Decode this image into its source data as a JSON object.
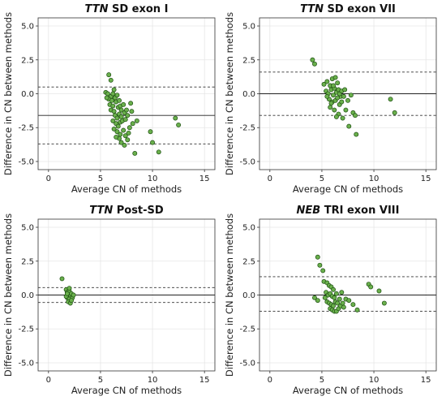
{
  "chart_data": [
    {
      "type": "scatter",
      "title": {
        "gene": "TTN",
        "rest": "SD exon I"
      },
      "xlabel": "Average CN of methods",
      "ylabel": "Difference in CN between methods",
      "xlim": [
        -1,
        16
      ],
      "ylim": [
        -5.6,
        5.6
      ],
      "xticks": [
        0,
        5,
        10,
        15
      ],
      "yticks": [
        5.0,
        2.5,
        0.0,
        -2.5,
        -5.0
      ],
      "ytick_labels": [
        "5.0",
        "2.5",
        "0.0",
        "-2.5",
        "-5.0"
      ],
      "grid": true,
      "mean": -1.6,
      "loa": [
        0.5,
        -3.7
      ],
      "points": [
        [
          5.8,
          1.4
        ],
        [
          6.0,
          1.0
        ],
        [
          5.5,
          0.1
        ],
        [
          5.7,
          0.0
        ],
        [
          6.0,
          -0.2
        ],
        [
          6.2,
          0.0
        ],
        [
          6.3,
          0.3
        ],
        [
          5.8,
          -0.4
        ],
        [
          6.1,
          -0.5
        ],
        [
          6.4,
          -0.3
        ],
        [
          5.9,
          -0.8
        ],
        [
          6.2,
          -0.9
        ],
        [
          6.5,
          -0.6
        ],
        [
          6.6,
          -0.1
        ],
        [
          6.8,
          -0.5
        ],
        [
          6.0,
          -1.2
        ],
        [
          6.3,
          -1.3
        ],
        [
          6.7,
          -1.0
        ],
        [
          6.9,
          -0.9
        ],
        [
          7.0,
          -1.2
        ],
        [
          7.2,
          -0.8
        ],
        [
          6.4,
          -1.6
        ],
        [
          6.6,
          -1.8
        ],
        [
          6.8,
          -1.5
        ],
        [
          7.0,
          -1.7
        ],
        [
          7.3,
          -1.4
        ],
        [
          7.5,
          -1.2
        ],
        [
          6.2,
          -2.0
        ],
        [
          6.5,
          -2.2
        ],
        [
          6.7,
          -2.4
        ],
        [
          6.9,
          -2.1
        ],
        [
          7.1,
          -2.0
        ],
        [
          7.4,
          -1.9
        ],
        [
          7.6,
          -1.6
        ],
        [
          6.3,
          -2.6
        ],
        [
          6.6,
          -2.8
        ],
        [
          6.9,
          -3.0
        ],
        [
          7.2,
          -2.7
        ],
        [
          7.4,
          -3.1
        ],
        [
          7.6,
          -3.4
        ],
        [
          6.8,
          -3.3
        ],
        [
          7.0,
          -3.6
        ],
        [
          7.3,
          -3.8
        ],
        [
          6.5,
          -3.2
        ],
        [
          7.8,
          -2.5
        ],
        [
          8.0,
          -1.3
        ],
        [
          8.5,
          -2.0
        ],
        [
          8.3,
          -4.4
        ],
        [
          9.8,
          -2.8
        ],
        [
          10.0,
          -3.6
        ],
        [
          10.6,
          -4.3
        ],
        [
          12.2,
          -1.8
        ],
        [
          12.5,
          -2.3
        ],
        [
          7.9,
          -0.7
        ],
        [
          5.6,
          -0.3
        ],
        [
          7.7,
          -2.9
        ],
        [
          8.1,
          -2.2
        ]
      ]
    },
    {
      "type": "scatter",
      "title": {
        "gene": "TTN",
        "rest": "SD exon VII"
      },
      "xlabel": "Average CN of methods",
      "ylabel": "Difference in CN between methods",
      "xlim": [
        -1,
        16
      ],
      "ylim": [
        -5.6,
        5.6
      ],
      "xticks": [
        0,
        5,
        10,
        15
      ],
      "yticks": [
        5.0,
        2.5,
        0.0,
        -2.5,
        -5.0
      ],
      "ytick_labels": [
        "5.0",
        "2.5",
        "0.0",
        "-2.5",
        "-5.0"
      ],
      "grid": true,
      "mean": 0.0,
      "loa": [
        1.6,
        -1.6
      ],
      "points": [
        [
          4.1,
          2.5
        ],
        [
          4.3,
          2.2
        ],
        [
          5.2,
          0.7
        ],
        [
          5.5,
          0.9
        ],
        [
          5.8,
          0.6
        ],
        [
          6.0,
          1.1
        ],
        [
          6.3,
          1.2
        ],
        [
          6.5,
          0.8
        ],
        [
          5.4,
          0.2
        ],
        [
          5.6,
          0.0
        ],
        [
          5.9,
          0.3
        ],
        [
          6.1,
          -0.1
        ],
        [
          6.2,
          0.4
        ],
        [
          6.4,
          0.1
        ],
        [
          6.6,
          0.3
        ],
        [
          6.8,
          -0.2
        ],
        [
          5.7,
          -0.4
        ],
        [
          6.0,
          -0.6
        ],
        [
          6.3,
          -0.5
        ],
        [
          6.5,
          -0.3
        ],
        [
          6.7,
          -0.8
        ],
        [
          6.9,
          -0.6
        ],
        [
          7.1,
          -0.2
        ],
        [
          5.8,
          -1.0
        ],
        [
          6.2,
          -1.2
        ],
        [
          6.6,
          -1.5
        ],
        [
          7.0,
          -1.8
        ],
        [
          7.3,
          -1.2
        ],
        [
          7.5,
          -0.5
        ],
        [
          7.8,
          -0.1
        ],
        [
          8.0,
          -1.4
        ],
        [
          8.2,
          -1.6
        ],
        [
          7.6,
          -2.4
        ],
        [
          8.3,
          -3.0
        ],
        [
          11.6,
          -0.4
        ],
        [
          12.0,
          -1.4
        ],
        [
          6.4,
          -1.7
        ],
        [
          5.5,
          -0.2
        ],
        [
          6.1,
          0.6
        ],
        [
          6.7,
          0.0
        ],
        [
          6.9,
          0.2
        ],
        [
          7.2,
          0.3
        ],
        [
          5.9,
          -0.7
        ]
      ]
    },
    {
      "type": "scatter",
      "title": {
        "gene": "TTN",
        "rest": "Post-SD"
      },
      "xlabel": "Average CN of methods",
      "ylabel": "Difference in CN between methods",
      "xlim": [
        -1,
        16
      ],
      "ylim": [
        -5.6,
        5.6
      ],
      "xticks": [
        0,
        5,
        10,
        15
      ],
      "yticks": [
        5.0,
        2.5,
        0.0,
        -2.5,
        -5.0
      ],
      "ytick_labels": [
        "5.0",
        "2.5",
        "0.0",
        "-2.5",
        "-5.0"
      ],
      "grid": true,
      "mean": 0.0,
      "loa": [
        0.55,
        -0.55
      ],
      "points": [
        [
          1.3,
          1.2
        ],
        [
          1.7,
          0.4
        ],
        [
          1.8,
          0.2
        ],
        [
          1.9,
          0.0
        ],
        [
          2.0,
          0.3
        ],
        [
          2.1,
          -0.1
        ],
        [
          2.2,
          0.1
        ],
        [
          1.8,
          -0.2
        ],
        [
          2.0,
          -0.3
        ],
        [
          2.3,
          -0.2
        ],
        [
          1.9,
          -0.5
        ],
        [
          2.1,
          -0.6
        ],
        [
          2.4,
          0.0
        ],
        [
          1.7,
          -0.1
        ],
        [
          2.2,
          -0.4
        ],
        [
          2.0,
          0.5
        ],
        [
          1.8,
          0.1
        ]
      ]
    },
    {
      "type": "scatter",
      "title": {
        "gene": "NEB",
        "rest": "TRI exon VIII"
      },
      "xlabel": "Average CN of methods",
      "ylabel": "Difference in CN between methods",
      "xlim": [
        -1,
        16
      ],
      "ylim": [
        -5.6,
        5.6
      ],
      "xticks": [
        0,
        5,
        10,
        15
      ],
      "yticks": [
        5.0,
        2.5,
        0.0,
        -2.5,
        -5.0
      ],
      "ytick_labels": [
        "5.0",
        "2.5",
        "0.0",
        "-2.5",
        "-5.0"
      ],
      "grid": true,
      "mean": 0.0,
      "loa": [
        1.35,
        -1.2
      ],
      "points": [
        [
          4.6,
          2.8
        ],
        [
          4.8,
          2.2
        ],
        [
          5.1,
          1.8
        ],
        [
          4.3,
          -0.2
        ],
        [
          4.6,
          -0.4
        ],
        [
          5.2,
          1.0
        ],
        [
          5.5,
          0.9
        ],
        [
          5.7,
          0.7
        ],
        [
          5.9,
          0.6
        ],
        [
          6.1,
          0.4
        ],
        [
          5.4,
          0.2
        ],
        [
          5.6,
          0.0
        ],
        [
          5.8,
          0.1
        ],
        [
          6.0,
          -0.1
        ],
        [
          6.2,
          -0.2
        ],
        [
          6.4,
          0.1
        ],
        [
          5.5,
          -0.5
        ],
        [
          5.7,
          -0.6
        ],
        [
          5.9,
          -0.7
        ],
        [
          6.1,
          -0.8
        ],
        [
          6.3,
          -0.5
        ],
        [
          6.5,
          -0.6
        ],
        [
          5.8,
          -1.0
        ],
        [
          6.0,
          -1.1
        ],
        [
          6.2,
          -1.2
        ],
        [
          6.4,
          -1.2
        ],
        [
          6.6,
          -1.0
        ],
        [
          6.8,
          -0.8
        ],
        [
          7.0,
          -0.6
        ],
        [
          7.3,
          -0.3
        ],
        [
          7.6,
          -0.4
        ],
        [
          8.0,
          -0.7
        ],
        [
          8.4,
          -1.1
        ],
        [
          9.5,
          0.8
        ],
        [
          9.7,
          0.6
        ],
        [
          10.5,
          0.3
        ],
        [
          11.0,
          -0.6
        ],
        [
          6.7,
          -0.3
        ],
        [
          7.1,
          -0.9
        ],
        [
          5.3,
          -0.2
        ],
        [
          6.9,
          0.2
        ]
      ]
    }
  ]
}
